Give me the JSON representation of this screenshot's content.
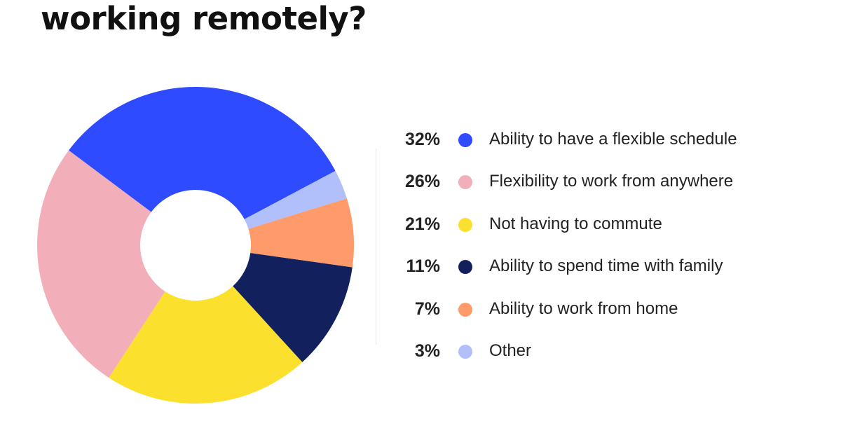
{
  "title": "working remotely?",
  "chart_data": {
    "type": "pie",
    "style": "donut",
    "start_angle_deg": -28,
    "direction": "counterclockwise",
    "categories": [
      "Ability to have a flexible schedule",
      "Flexibility to work from anywhere",
      "Not having to commute",
      "Ability to spend time with family",
      "Ability to work from home",
      "Other"
    ],
    "values": [
      32,
      26,
      21,
      11,
      7,
      3
    ],
    "value_labels": [
      "32%",
      "26%",
      "21%",
      "11%",
      "7%",
      "3%"
    ],
    "colors": [
      "#2f4bff",
      "#f2afba",
      "#fbe02d",
      "#13205e",
      "#ff9a6b",
      "#b1bffb"
    ],
    "legend_position": "right"
  }
}
